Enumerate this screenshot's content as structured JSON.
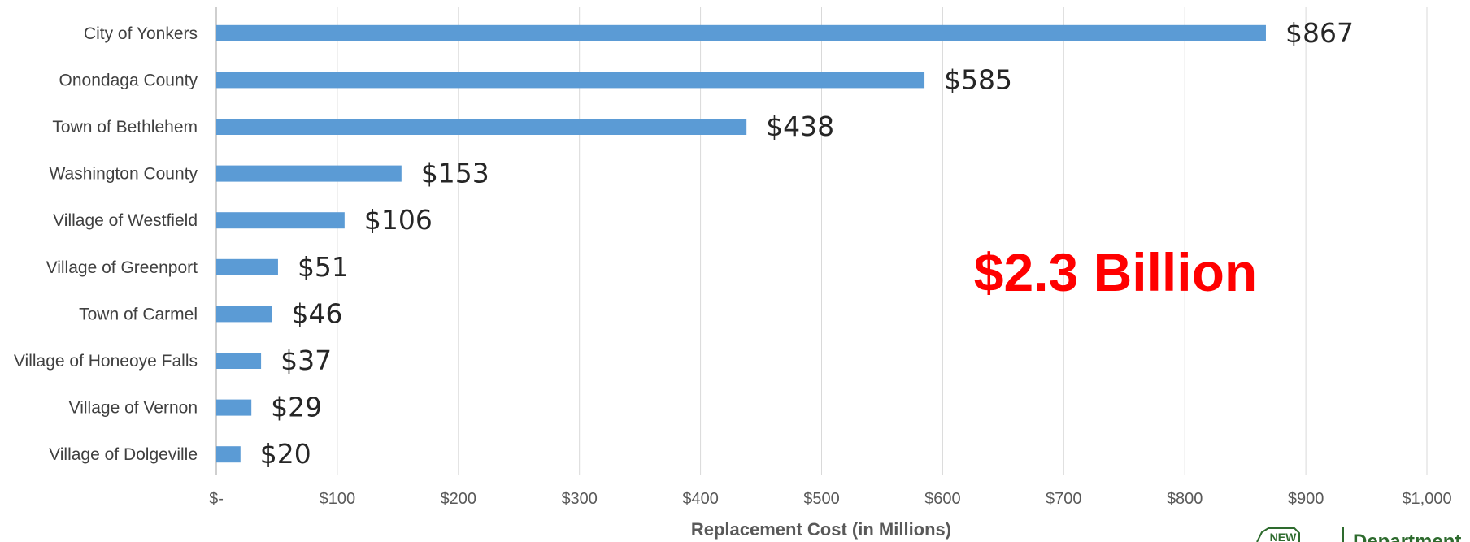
{
  "chart_data": {
    "type": "bar",
    "orientation": "horizontal",
    "categories": [
      "City of Yonkers",
      "Onondaga County",
      "Town of Bethlehem",
      "Washington County",
      "Village of Westfield",
      "Village of Greenport",
      "Town of Carmel",
      "Village of Honeoye Falls",
      "Village of Vernon",
      "Village of Dolgeville"
    ],
    "values": [
      867,
      585,
      438,
      153,
      106,
      51,
      46,
      37,
      29,
      20
    ],
    "value_labels": [
      "$867",
      "$585",
      "$438",
      "$153",
      "$106",
      "$51",
      "$46",
      "$37",
      "$29",
      "$20"
    ],
    "xlabel": "Replacement Cost (in Millions)",
    "xlim": [
      0,
      1000
    ],
    "x_ticks": [
      0,
      100,
      200,
      300,
      400,
      500,
      600,
      700,
      800,
      900,
      1000
    ],
    "x_tick_labels": [
      "$-",
      "$100",
      "$200",
      "$300",
      "$400",
      "$500",
      "$600",
      "$700",
      "$800",
      "$900",
      "$1,000"
    ],
    "grid": "vertical",
    "bar_color": "#5b9bd5",
    "annotation": "$2.3 Billion",
    "annotation_color": "#ff0000"
  },
  "logo": {
    "mark_text": "NEW",
    "text": "Department",
    "color": "#2e6b2e"
  }
}
